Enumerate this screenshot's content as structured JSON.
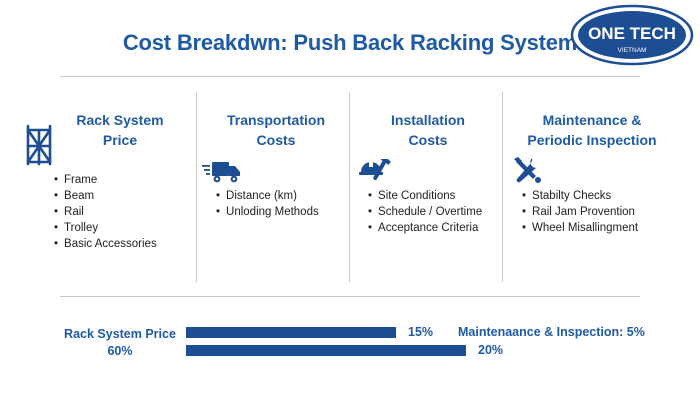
{
  "title": "Cost Breakdwn: Push Back Racking System",
  "logo": {
    "name": "ONE TECH",
    "sub": "VIETNAM"
  },
  "columns": [
    {
      "title_line1": "Rack System",
      "title_line2": "Price",
      "icon": "rack-icon",
      "items": [
        "Frame",
        "Beam",
        "Rail",
        "Trolley",
        "Basic Accessories"
      ]
    },
    {
      "title_line1": "Transportation",
      "title_line2": "Costs",
      "icon": "truck-icon",
      "items": [
        "Distance (km)",
        "Unloding Methods"
      ]
    },
    {
      "title_line1": "Installation",
      "title_line2": "Costs",
      "icon": "hardhat-wrench-icon",
      "items": [
        "Site Conditions",
        "Schedule / Overtime",
        "Acceptance Criteria"
      ]
    },
    {
      "title_line1": "Maintenance &",
      "title_line2": "Periodic Inspection",
      "icon": "tools-icon",
      "items": [
        "Stabilty Checks",
        "Rail Jam Provention",
        "Wheel Misallingment"
      ]
    }
  ],
  "chart_data": {
    "type": "bar",
    "orientation": "horizontal",
    "series": [
      {
        "name": "Transportation Costs",
        "value": 15,
        "label": "15%"
      },
      {
        "name": "Installation Costs",
        "value": 20,
        "label": "20%"
      }
    ],
    "annotations": [
      {
        "name": "Rack System Price",
        "text_line1": "Rack System Price",
        "text_line2": "60%",
        "value": 60
      },
      {
        "name": "Maintenance & Inspection",
        "text": "Maintenaance & Inspection: 5%",
        "value": 5
      }
    ]
  },
  "colors": {
    "accent": "#1f5aa6",
    "bar": "#1d4e93",
    "rule": "#c9c9c9"
  }
}
